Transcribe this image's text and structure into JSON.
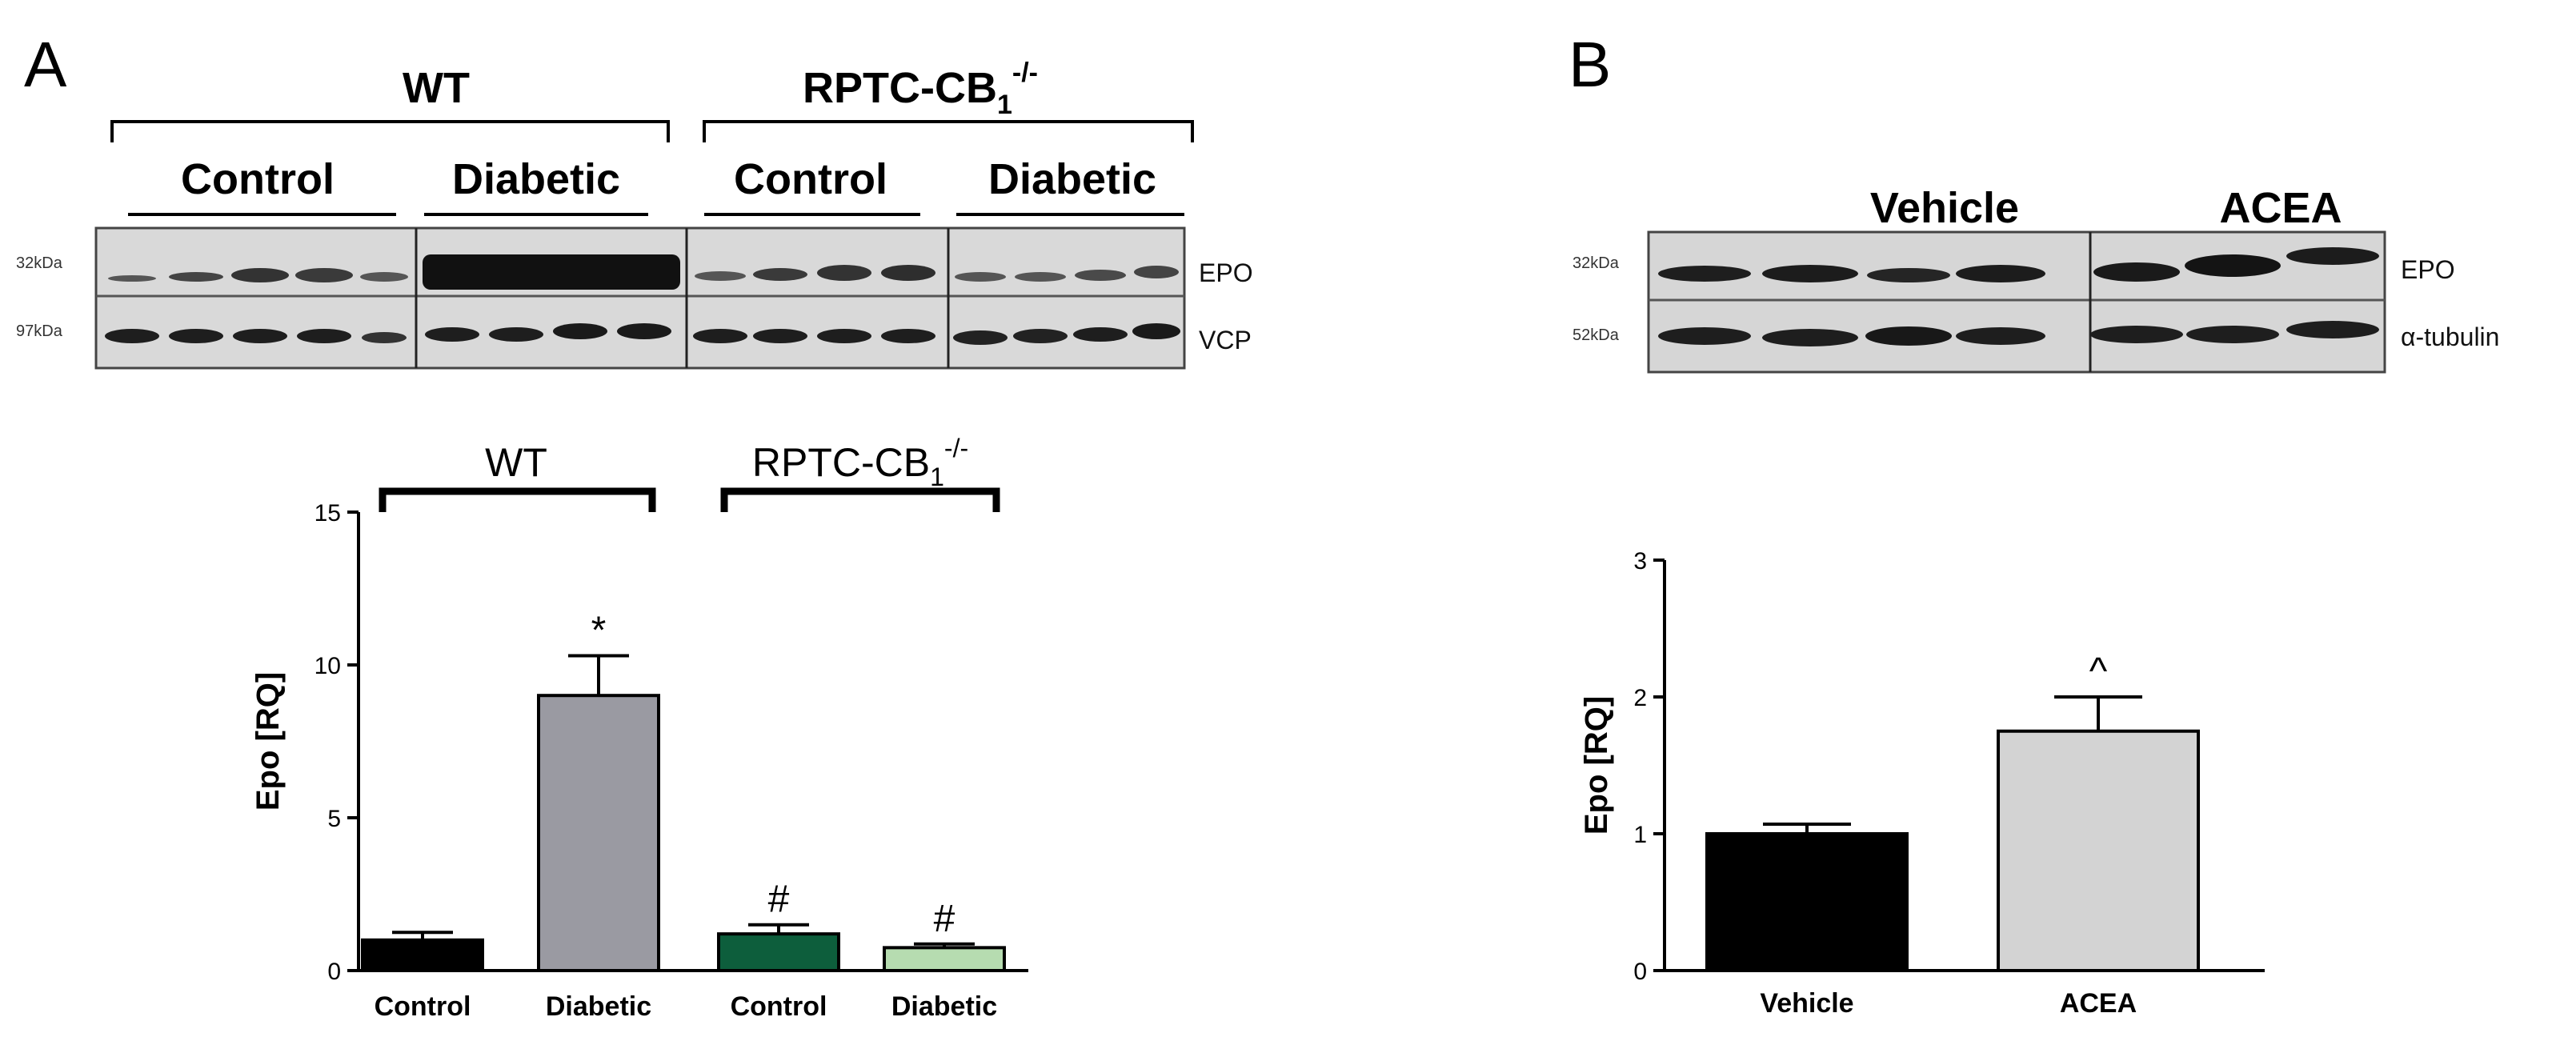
{
  "panels": {
    "a": {
      "letter": "A",
      "blot": {
        "groups": [
          {
            "label": "WT",
            "sub": [
              "Control",
              "Diabetic"
            ]
          },
          {
            "label_main": "RPTC-CB",
            "label_sub": "1",
            "label_sup": "-/-",
            "sub": [
              "Control",
              "Diabetic"
            ]
          }
        ],
        "rows": [
          {
            "kda": "32kDa",
            "name": "EPO"
          },
          {
            "kda": "97kDa",
            "name": "VCP"
          }
        ]
      },
      "bar_groups": [
        {
          "label": "WT"
        },
        {
          "label_main": "RPTC-CB",
          "label_sub": "1",
          "label_sup": "-/-"
        }
      ]
    },
    "b": {
      "letter": "B",
      "blot": {
        "groups": [
          "Vehicle",
          "ACEA"
        ],
        "rows": [
          {
            "kda": "32kDa",
            "name": "EPO"
          },
          {
            "kda": "52kDa",
            "name": "α-tubulin"
          }
        ]
      }
    }
  },
  "chart_data": [
    {
      "type": "bar",
      "panel": "A",
      "ylabel": "Epo [RQ]",
      "ylim": [
        0,
        15
      ],
      "yticks": [
        0,
        5,
        10,
        15
      ],
      "categories": [
        "Control",
        "Diabetic",
        "Control",
        "Diabetic"
      ],
      "values": [
        1.0,
        9.0,
        1.2,
        0.75
      ],
      "errors": [
        0.25,
        1.3,
        0.3,
        0.12
      ],
      "annotations": [
        "",
        "*",
        "#",
        "#"
      ],
      "colors": [
        "#000000",
        "#9a9aa2",
        "#0d5e3c",
        "#b6dcb0"
      ]
    },
    {
      "type": "bar",
      "panel": "B",
      "ylabel": "Epo [RQ]",
      "ylim": [
        0,
        3
      ],
      "yticks": [
        0,
        1,
        2,
        3
      ],
      "categories": [
        "Vehicle",
        "ACEA"
      ],
      "values": [
        1.0,
        1.75
      ],
      "errors": [
        0.07,
        0.25
      ],
      "annotations": [
        "",
        "^"
      ],
      "colors": [
        "#000000",
        "#d3d3d3"
      ]
    }
  ]
}
